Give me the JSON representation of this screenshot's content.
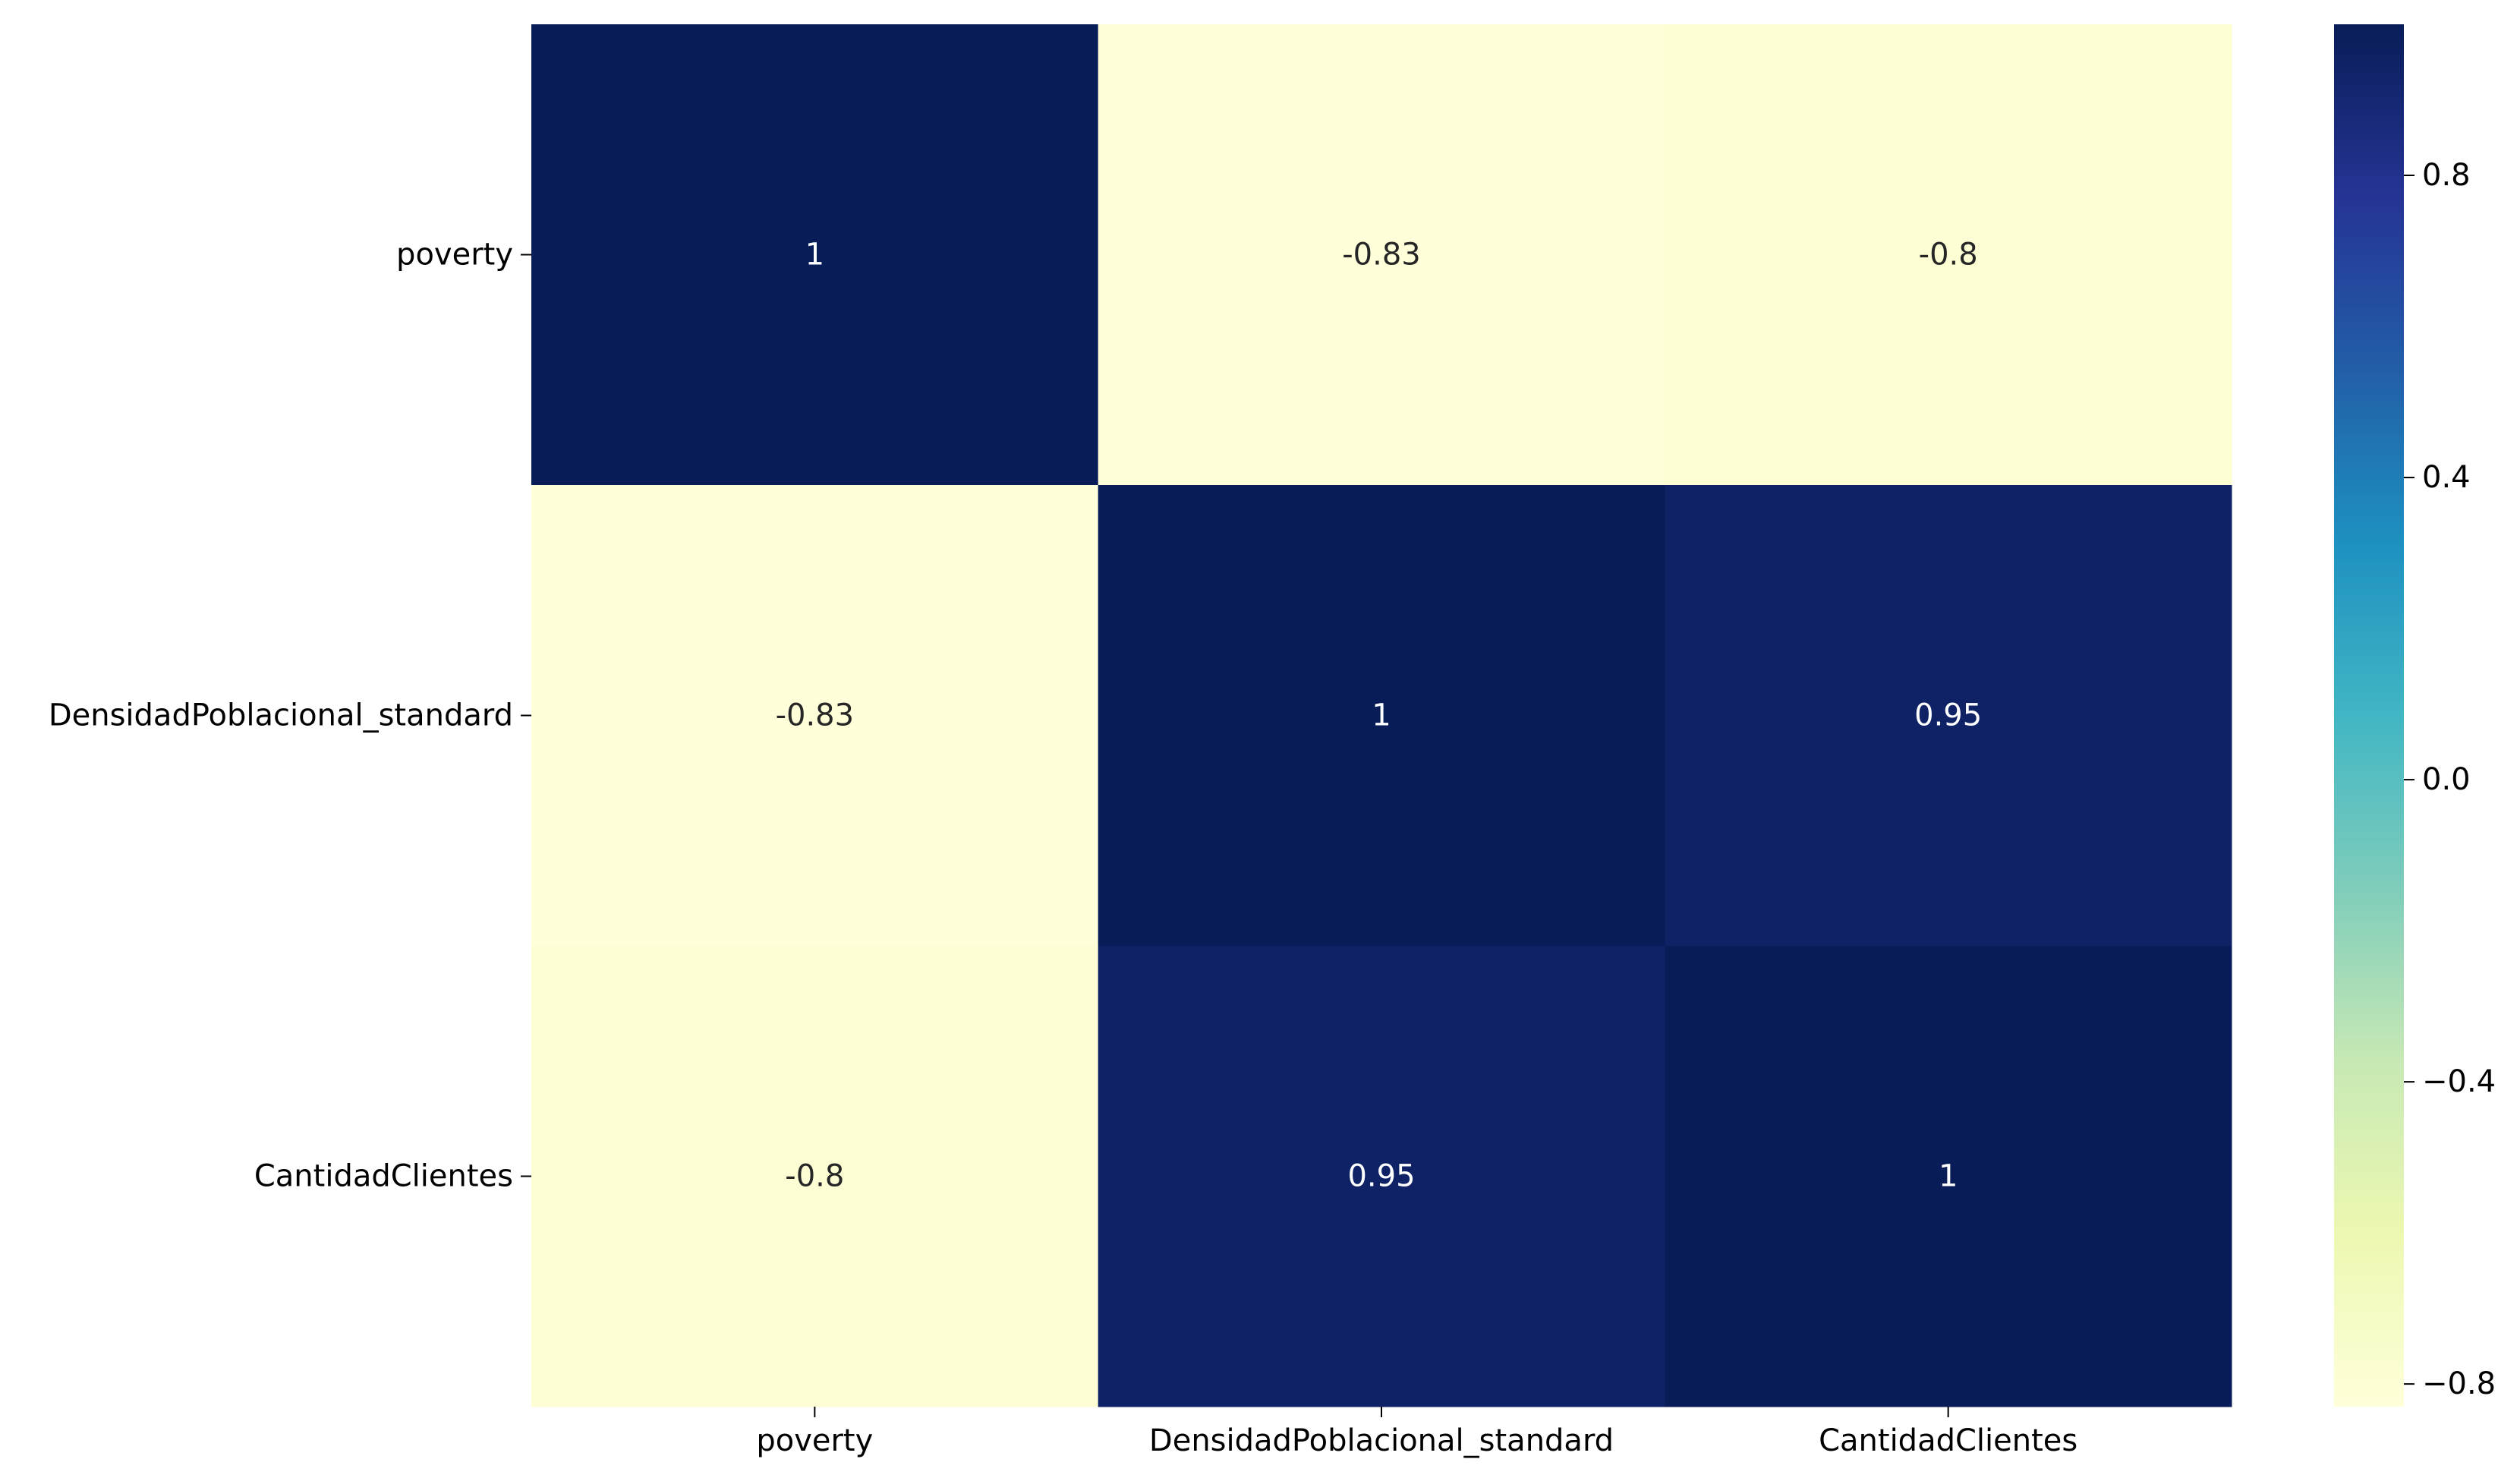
{
  "chart_data": {
    "type": "heatmap",
    "title": "",
    "xlabel": "",
    "ylabel": "",
    "x_categories": [
      "poverty",
      "DensidadPoblacional_standard",
      "CantidadClientes"
    ],
    "y_categories": [
      "poverty",
      "DensidadPoblacional_standard",
      "CantidadClientes"
    ],
    "values": [
      [
        1,
        -0.83,
        -0.8
      ],
      [
        -0.83,
        1,
        0.95
      ],
      [
        -0.8,
        0.95,
        1
      ]
    ],
    "cell_labels": [
      [
        "1",
        "-0.83",
        "-0.8"
      ],
      [
        "-0.83",
        "1",
        "0.95"
      ],
      [
        "-0.8",
        "0.95",
        "1"
      ]
    ],
    "colormap": "YlGnBu",
    "color_range": [
      -0.83,
      1
    ],
    "colorbar": {
      "ticks": [
        0.8,
        0.4,
        0.0,
        -0.4,
        -0.8
      ],
      "tick_labels": [
        "0.8",
        "0.4",
        "0.0",
        "−0.4",
        "−0.8"
      ],
      "placement": "right"
    },
    "grid": false
  }
}
